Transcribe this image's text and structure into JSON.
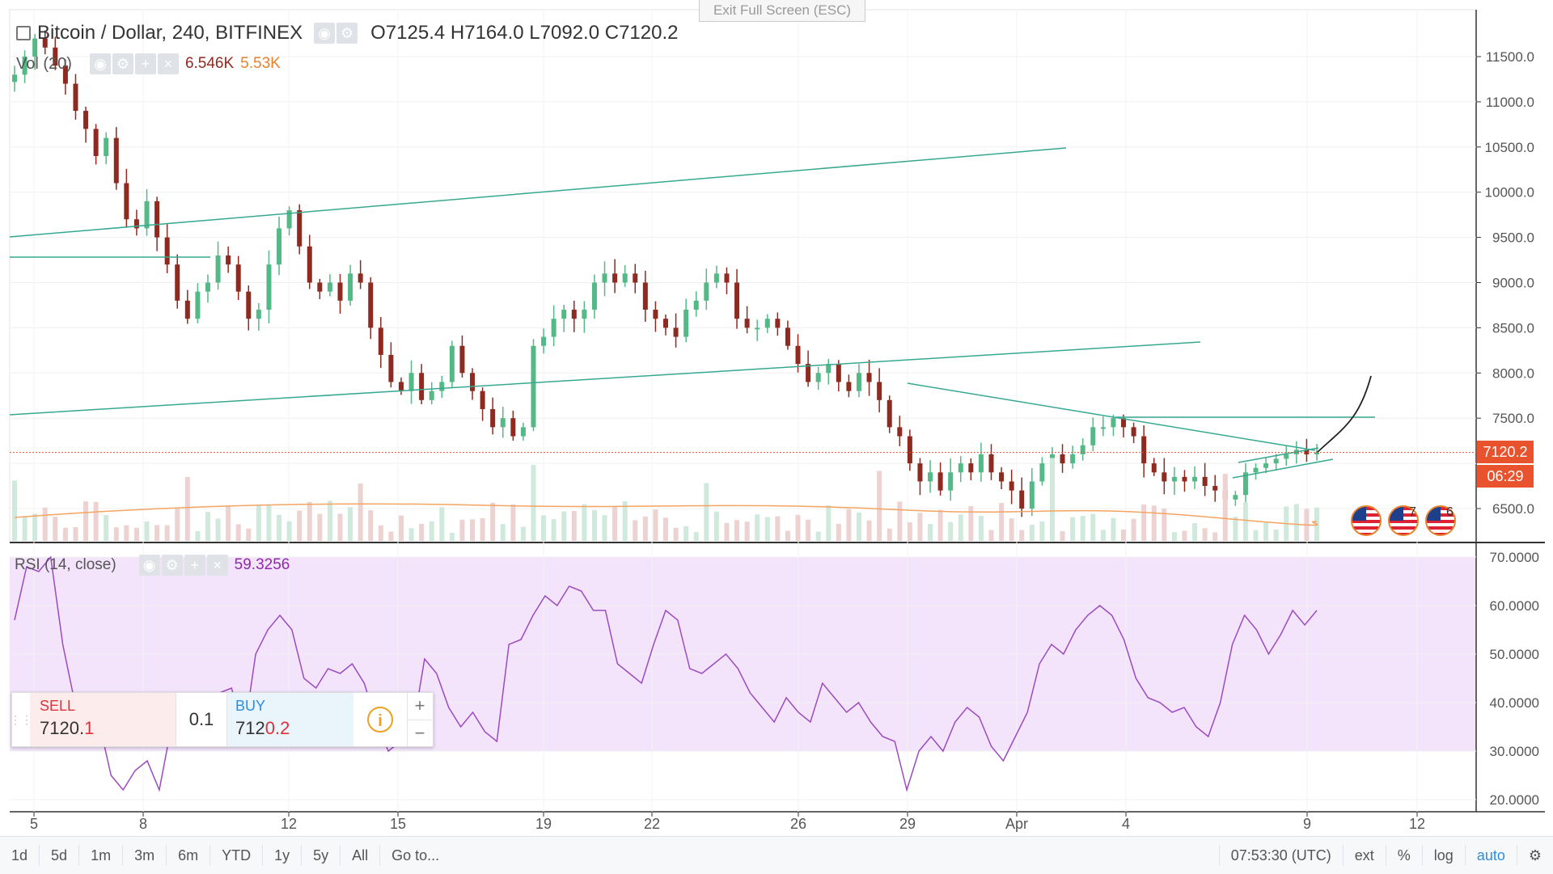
{
  "exit_fullscreen": "Exit Full Screen (ESC)",
  "legend": {
    "symbol": "Bitcoin / Dollar, 240, BITFINEX",
    "o_label": "O",
    "o": "7125.4",
    "h_label": "H",
    "h": "7164.0",
    "l_label": "L",
    "l": "7092.0",
    "c_label": "C",
    "c": "7120.2"
  },
  "volume": {
    "label": "Vol (20)",
    "value1": "6.546K",
    "value2": "5.53K"
  },
  "rsi": {
    "label": "RSI (14, close)",
    "value": "59.3256"
  },
  "price_tags": {
    "last": "7120.2",
    "countdown": "06:29"
  },
  "flags_counts": [
    "7",
    "6"
  ],
  "trade": {
    "sell_label": "SELL",
    "sell_main": "7120.",
    "sell_tail": "1",
    "qty": "0.1",
    "buy_label": "BUY",
    "buy_main": "712",
    "buy_tail": "0.2",
    "info": "i",
    "plus": "+",
    "minus": "−"
  },
  "bottombar": {
    "ranges": [
      "1d",
      "5d",
      "1m",
      "3m",
      "6m",
      "YTD",
      "1y",
      "5y",
      "All"
    ],
    "goto": "Go to...",
    "time": "07:53:30 (UTC)",
    "ext": "ext",
    "percent": "%",
    "log": "log",
    "auto": "auto"
  },
  "colors": {
    "up": "#53b987",
    "down": "#8e2a20",
    "trend": "#37a890",
    "rsi": "#9b4bbf",
    "rsi_band": "#f3e4fb",
    "last_price": "#e8522c",
    "countdown": "#e8522c"
  },
  "chart_data": {
    "type": "candlestick",
    "price_axis": {
      "ticks": [
        6500,
        7000,
        7500,
        8000,
        8500,
        9000,
        9500,
        10000,
        10500,
        11000,
        11500
      ],
      "labels": [
        "6500.0",
        "7500.0",
        "8000.0",
        "8500.0",
        "9000.0",
        "9500.0",
        "10000.0",
        "10500.0",
        "11000.0",
        "11500.0"
      ]
    },
    "rsi_axis": {
      "labels": [
        "20.0000",
        "30.0000",
        "40.0000",
        "50.0000",
        "60.0000",
        "70.0000"
      ],
      "band": [
        30,
        70
      ]
    },
    "x_labels": [
      "5",
      "8",
      "12",
      "15",
      "19",
      "22",
      "26",
      "29",
      "Apr",
      "4",
      "9",
      "12"
    ],
    "close_path": [
      11300,
      11500,
      11700,
      11600,
      11400,
      11200,
      10900,
      10700,
      10400,
      10600,
      10100,
      9700,
      9600,
      9900,
      9500,
      9200,
      8800,
      8600,
      8900,
      9000,
      9300,
      9200,
      8900,
      8600,
      8700,
      9200,
      9600,
      9800,
      9400,
      9000,
      8900,
      9000,
      8800,
      9100,
      9000,
      8500,
      8200,
      7900,
      7800,
      8000,
      7700,
      7800,
      7900,
      8300,
      8000,
      7800,
      7600,
      7400,
      7500,
      7300,
      7400,
      8300,
      8400,
      8600,
      8700,
      8600,
      8700,
      9000,
      9100,
      9000,
      9100,
      9000,
      8700,
      8600,
      8500,
      8400,
      8700,
      8800,
      9000,
      9100,
      9000,
      8600,
      8500,
      8500,
      8600,
      8500,
      8300,
      8100,
      7900,
      8000,
      8100,
      7900,
      7800,
      8000,
      7900,
      7700,
      7400,
      7300,
      7000,
      6800,
      6900,
      6700,
      6900,
      7000,
      6900,
      7100,
      6900,
      6800,
      6700,
      6500,
      6800,
      7000,
      7100,
      7000,
      7100,
      7200,
      7400,
      7400,
      7500,
      7400,
      7300,
      7000,
      6900,
      6800,
      6850,
      6800,
      6850,
      6750,
      6700,
      6600,
      6650,
      6900,
      6950,
      7000,
      7050,
      7100,
      7150,
      7100,
      7120
    ],
    "rsi_path": [
      57,
      68,
      67,
      70,
      52,
      40,
      41,
      36,
      25,
      22,
      26,
      28,
      22,
      35,
      33,
      37,
      41,
      42,
      43,
      33,
      50,
      55,
      58,
      55,
      45,
      43,
      47,
      46,
      48,
      44,
      36,
      30,
      32,
      34,
      49,
      46,
      39,
      35,
      38,
      34,
      32,
      52,
      53,
      58,
      62,
      60,
      64,
      63,
      59,
      59,
      48,
      46,
      44,
      52,
      59,
      57,
      47,
      46,
      48,
      50,
      47,
      42,
      39,
      36,
      41,
      38,
      36,
      44,
      41,
      38,
      40,
      36,
      33,
      32,
      22,
      30,
      33,
      30,
      36,
      39,
      37,
      31,
      28,
      33,
      38,
      48,
      52,
      50,
      55,
      58,
      60,
      58,
      53,
      45,
      41,
      40,
      38,
      39,
      35,
      33,
      40,
      52,
      58,
      55,
      50,
      54,
      59,
      56,
      59
    ]
  }
}
